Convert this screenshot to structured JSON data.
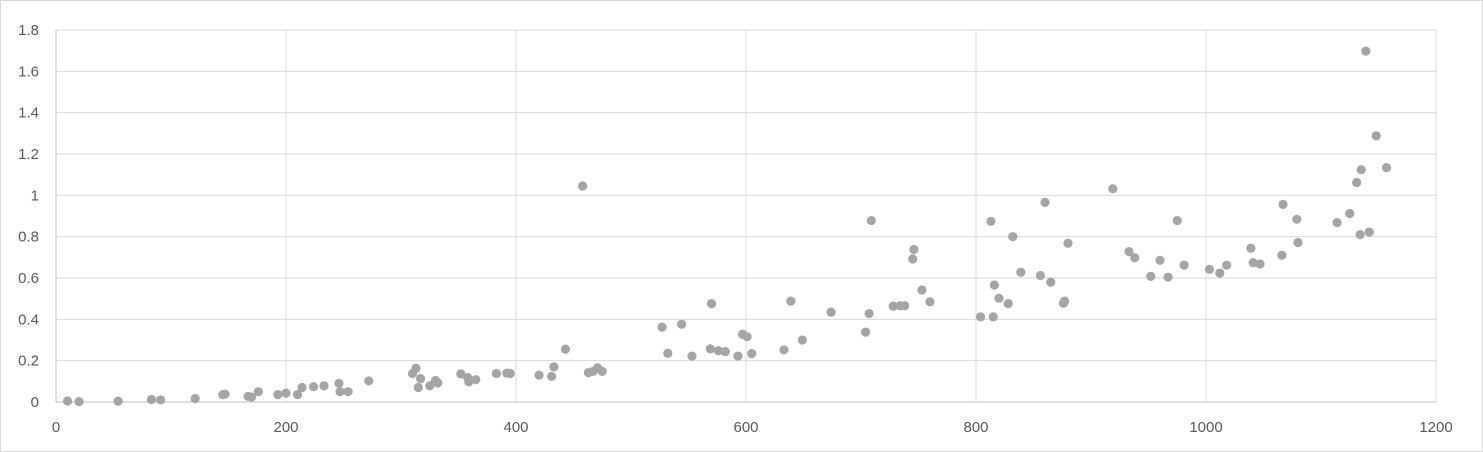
{
  "chart_data": {
    "type": "scatter",
    "title": "",
    "xlabel": "",
    "ylabel": "",
    "xlim": [
      0,
      1200
    ],
    "ylim": [
      0,
      1.8
    ],
    "x_ticks": [
      "0",
      "200",
      "400",
      "600",
      "800",
      "1000",
      "1200"
    ],
    "y_ticks": [
      "0",
      "0.2",
      "0.4",
      "0.6",
      "0.8",
      "1",
      "1.2",
      "1.4",
      "1.6",
      "1.8"
    ],
    "grid": true,
    "legend": "none",
    "marker_color": "#a5a5a5",
    "series": [
      {
        "points": [
          [
            10,
            0.005
          ],
          [
            20,
            0.002
          ],
          [
            54,
            0.004
          ],
          [
            83,
            0.012
          ],
          [
            91,
            0.01
          ],
          [
            121,
            0.017
          ],
          [
            145,
            0.035
          ],
          [
            147,
            0.038
          ],
          [
            167,
            0.027
          ],
          [
            170,
            0.024
          ],
          [
            176,
            0.05
          ],
          [
            193,
            0.036
          ],
          [
            200,
            0.043
          ],
          [
            210,
            0.036
          ],
          [
            214,
            0.07
          ],
          [
            224,
            0.074
          ],
          [
            233,
            0.078
          ],
          [
            246,
            0.09
          ],
          [
            247,
            0.05
          ],
          [
            254,
            0.05
          ],
          [
            272,
            0.102
          ],
          [
            310,
            0.138
          ],
          [
            313,
            0.163
          ],
          [
            315,
            0.07
          ],
          [
            317,
            0.113
          ],
          [
            325,
            0.078
          ],
          [
            330,
            0.104
          ],
          [
            332,
            0.092
          ],
          [
            352,
            0.136
          ],
          [
            358,
            0.118
          ],
          [
            359,
            0.098
          ],
          [
            365,
            0.108
          ],
          [
            383,
            0.138
          ],
          [
            392,
            0.14
          ],
          [
            395,
            0.138
          ],
          [
            420,
            0.13
          ],
          [
            431,
            0.124
          ],
          [
            433,
            0.17
          ],
          [
            443,
            0.256
          ],
          [
            458,
            1.045
          ],
          [
            463,
            0.142
          ],
          [
            467,
            0.148
          ],
          [
            471,
            0.165
          ],
          [
            475,
            0.148
          ],
          [
            527,
            0.362
          ],
          [
            532,
            0.236
          ],
          [
            544,
            0.376
          ],
          [
            553,
            0.222
          ],
          [
            569,
            0.257
          ],
          [
            570,
            0.476
          ],
          [
            576,
            0.248
          ],
          [
            582,
            0.244
          ],
          [
            593,
            0.222
          ],
          [
            597,
            0.328
          ],
          [
            601,
            0.316
          ],
          [
            605,
            0.234
          ],
          [
            633,
            0.252
          ],
          [
            639,
            0.488
          ],
          [
            649,
            0.3
          ],
          [
            674,
            0.435
          ],
          [
            704,
            0.338
          ],
          [
            707,
            0.428
          ],
          [
            709,
            0.878
          ],
          [
            728,
            0.464
          ],
          [
            734,
            0.466
          ],
          [
            738,
            0.466
          ],
          [
            745,
            0.692
          ],
          [
            746,
            0.738
          ],
          [
            753,
            0.542
          ],
          [
            760,
            0.485
          ],
          [
            804,
            0.412
          ],
          [
            813,
            0.874
          ],
          [
            815,
            0.412
          ],
          [
            816,
            0.566
          ],
          [
            820,
            0.502
          ],
          [
            828,
            0.476
          ],
          [
            832,
            0.8
          ],
          [
            839,
            0.628
          ],
          [
            856,
            0.612
          ],
          [
            860,
            0.966
          ],
          [
            865,
            0.58
          ],
          [
            876,
            0.478
          ],
          [
            877,
            0.488
          ],
          [
            880,
            0.768
          ],
          [
            919,
            1.032
          ],
          [
            933,
            0.728
          ],
          [
            938,
            0.698
          ],
          [
            952,
            0.608
          ],
          [
            960,
            0.686
          ],
          [
            967,
            0.604
          ],
          [
            975,
            0.878
          ],
          [
            981,
            0.662
          ],
          [
            1003,
            0.642
          ],
          [
            1012,
            0.624
          ],
          [
            1018,
            0.662
          ],
          [
            1039,
            0.744
          ],
          [
            1041,
            0.674
          ],
          [
            1047,
            0.668
          ],
          [
            1066,
            0.71
          ],
          [
            1067,
            0.956
          ],
          [
            1079,
            0.884
          ],
          [
            1080,
            0.772
          ],
          [
            1114,
            0.868
          ],
          [
            1125,
            0.912
          ],
          [
            1131,
            1.062
          ],
          [
            1134,
            0.81
          ],
          [
            1135,
            1.124
          ],
          [
            1139,
            1.698
          ],
          [
            1142,
            0.822
          ],
          [
            1148,
            1.288
          ],
          [
            1157,
            1.134
          ]
        ]
      }
    ]
  }
}
